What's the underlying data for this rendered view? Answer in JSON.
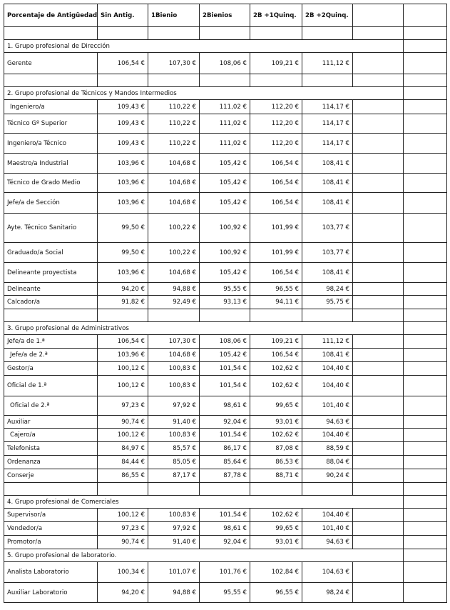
{
  "table": {
    "header": [
      "Porcentaje de Antigüedad",
      "Sin Antig.",
      "1Bienio",
      "2Bienios",
      "2B +1Quinq.",
      "2B +2Quinq."
    ],
    "sections": [
      {
        "title": "1. Grupo profesional de Dirección",
        "rows": [
          [
            "Gerente",
            "106,54 €",
            "107,30 €",
            "108,06 €",
            "109,21 €",
            "111,12 €"
          ]
        ]
      },
      {
        "title": "2. Grupo profesional de Técnicos y Mandos Intermedios",
        "rows": [
          [
            "Ingeniero/a",
            "109,43 €",
            "110,22 €",
            "111,02 €",
            "112,20 €",
            "114,17 €"
          ],
          [
            "Técnico Gº Superior",
            "109,43 €",
            "110,22 €",
            "111,02 €",
            "112,20 €",
            "114,17 €"
          ],
          [
            "Ingeniero/a Técnico",
            "109,43 €",
            "110,22 €",
            "111,02 €",
            "112,20 €",
            "114,17 €"
          ],
          [
            "Maestro/a Industrial",
            "103,96 €",
            "104,68 €",
            "105,42 €",
            "106,54 €",
            "108,41 €"
          ],
          [
            "Técnico de Grado Medio",
            "103,96 €",
            "104,68 €",
            "105,42 €",
            "106,54 €",
            "108,41 €"
          ],
          [
            "Jefe/a de Sección",
            "103,96 €",
            "104,68 €",
            "105,42 €",
            "106,54 €",
            "108,41 €"
          ],
          [
            "Ayte. Técnico Sanitario",
            "99,50 €",
            "100,22 €",
            "100,92 €",
            "101,99 €",
            "103,77 €"
          ],
          [
            "Graduado/a Social",
            "99,50 €",
            "100,22 €",
            "100,92 €",
            "101,99 €",
            "103,77 €"
          ],
          [
            "Delineante proyectista",
            "103,96 €",
            "104,68 €",
            "105,42 €",
            "106,54 €",
            "108,41 €"
          ],
          [
            "Delineante",
            "94,20 €",
            "94,88 €",
            "95,55 €",
            "96,55 €",
            "98,24 €"
          ],
          [
            "Calcador/a",
            "91,82 €",
            "92,49 €",
            "93,13 €",
            "94,11 €",
            "95,75 €"
          ]
        ]
      },
      {
        "title": "3. Grupo profesional de Administrativos",
        "rows": [
          [
            "Jefe/a de 1.ª",
            "106,54 €",
            "107,30 €",
            "108,06 €",
            "109,21 €",
            "111,12 €"
          ],
          [
            "Jefe/a de 2.ª",
            "103,96 €",
            "104,68 €",
            "105,42 €",
            "106,54 €",
            "108,41 €"
          ],
          [
            "Gestor/a",
            "100,12 €",
            "100,83 €",
            "101,54 €",
            "102,62 €",
            "104,40 €"
          ],
          [
            "Oficial de 1.ª",
            "100,12 €",
            "100,83 €",
            "101,54 €",
            "102,62 €",
            "104,40 €"
          ],
          [
            "Oficial de 2.ª",
            "97,23 €",
            "97,92 €",
            "98,61 €",
            "99,65 €",
            "101,40 €"
          ],
          [
            "Auxiliar",
            "90,74 €",
            "91,40 €",
            "92,04 €",
            "93,01 €",
            "94,63 €"
          ],
          [
            "Cajero/a",
            "100,12 €",
            "100,83 €",
            "101,54 €",
            "102,62 €",
            "104,40 €"
          ],
          [
            "Telefonista",
            "84,97 €",
            "85,57 €",
            "86,17 €",
            "87,08 €",
            "88,59 €"
          ],
          [
            "Ordenanza",
            "84,44 €",
            "85,05 €",
            "85,64 €",
            "86,53 €",
            "88,04 €"
          ],
          [
            "Conserje",
            "86,55 €",
            "87,17 €",
            "87,78 €",
            "88,71 €",
            "90,24 €"
          ]
        ]
      },
      {
        "title": "4. Grupo profesional de Comerciales",
        "rows": [
          [
            "Supervisor/a",
            "100,12 €",
            "100,83 €",
            "101,54 €",
            "102,62 €",
            "104,40 €"
          ],
          [
            "Vendedor/a",
            "97,23 €",
            "97,92 €",
            "98,61 €",
            "99,65 €",
            "101,40 €"
          ],
          [
            "Promotor/a",
            "90,74 €",
            "91,40 €",
            "92,04 €",
            "93,01 €",
            "94,63 €"
          ]
        ]
      },
      {
        "title": "5. Grupo profesional de laboratorio.",
        "rows": [
          [
            "Analista Laboratorio",
            "100,34 €",
            "101,07 €",
            "101,76 €",
            "102,84 €",
            "104,63 €"
          ],
          [
            "Auxiliar Laboratorio",
            "94,20 €",
            "94,88 €",
            "95,55 €",
            "96,55 €",
            "98,24 €"
          ]
        ]
      }
    ]
  }
}
